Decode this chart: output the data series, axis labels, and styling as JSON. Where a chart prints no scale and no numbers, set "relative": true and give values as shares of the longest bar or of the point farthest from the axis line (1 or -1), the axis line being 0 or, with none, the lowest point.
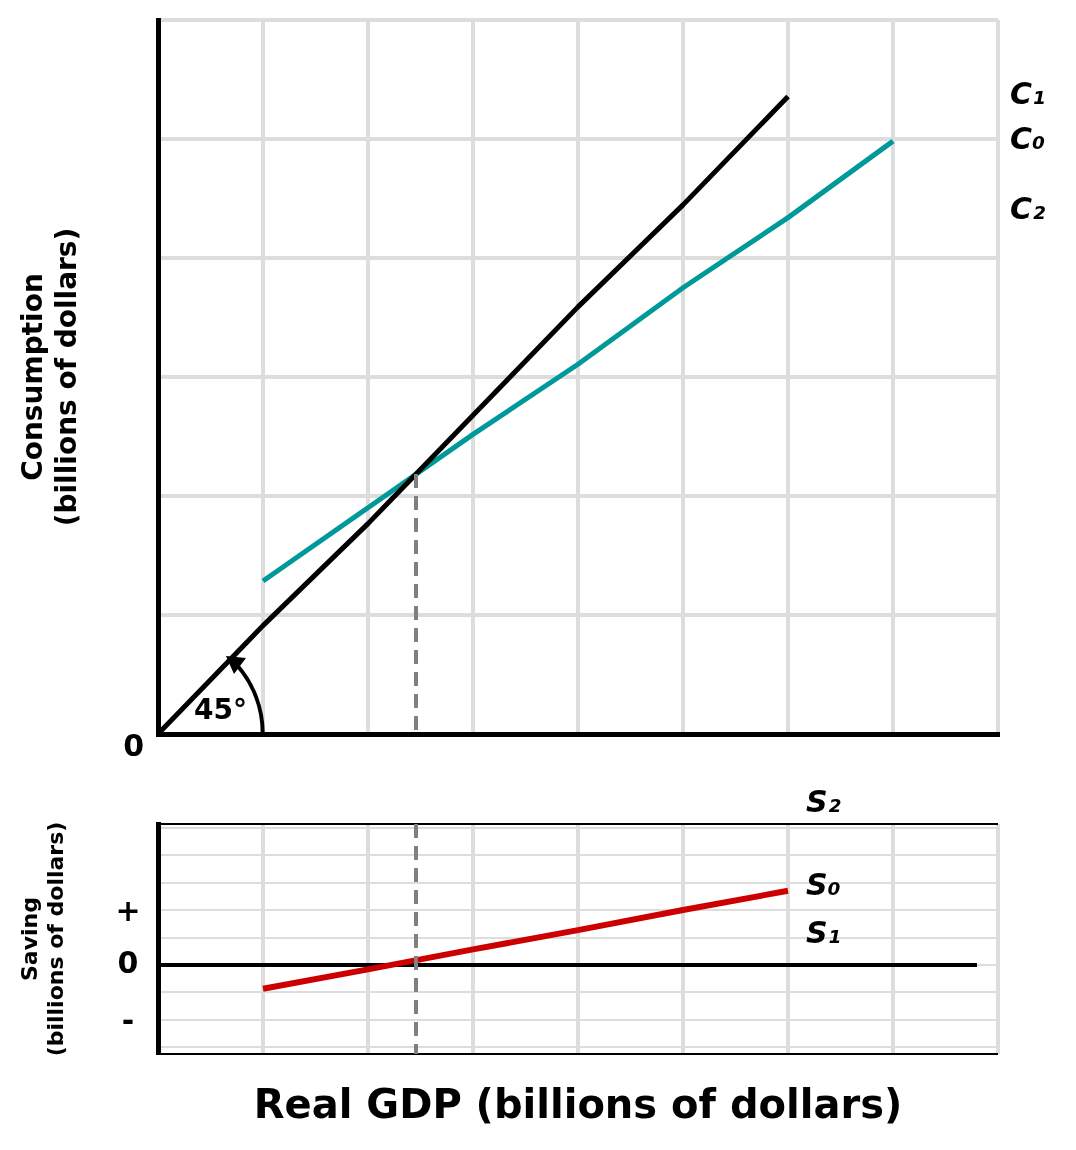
{
  "chart_data": [
    {
      "type": "line",
      "ylabel": "Consumption (billions of dollars)",
      "categories": [
        null,
        null,
        null,
        null,
        null,
        null,
        null,
        null,
        null
      ],
      "relative": true,
      "grid": true,
      "tick_labels": false,
      "legend": false,
      "marker": "none",
      "line_style": "solid",
      "series": [
        {
          "name": "C₁",
          "color": "#000000",
          "values": [
            0,
            0.17,
            0.33,
            0.5,
            0.67,
            0.83,
            1,
            null,
            null
          ]
        },
        {
          "name": "C₀",
          "color": "#009999",
          "values": [
            null,
            0.24,
            0.355,
            0.47,
            0.58,
            0.7,
            0.81,
            0.93,
            null
          ]
        }
      ],
      "annotations": [
        "0",
        "C₂",
        "45°"
      ]
    },
    {
      "type": "line",
      "ylabel": "Saving (billions of dollars)",
      "xlabel": "Real GDP (billions of dollars)",
      "categories": [
        null,
        null,
        null,
        null,
        null,
        null,
        null,
        null,
        null
      ],
      "relative": true,
      "grid": true,
      "tick_labels": false,
      "legend": false,
      "marker": "none",
      "line_style": "solid",
      "series": [
        {
          "name": "S₀",
          "color": "#cc0000",
          "values": [
            null,
            -0.32,
            -0.06,
            0.21,
            0.47,
            0.74,
            1,
            null,
            null
          ]
        }
      ],
      "annotations": [
        "S₂",
        "S₁",
        "+",
        "0",
        "-"
      ]
    }
  ]
}
